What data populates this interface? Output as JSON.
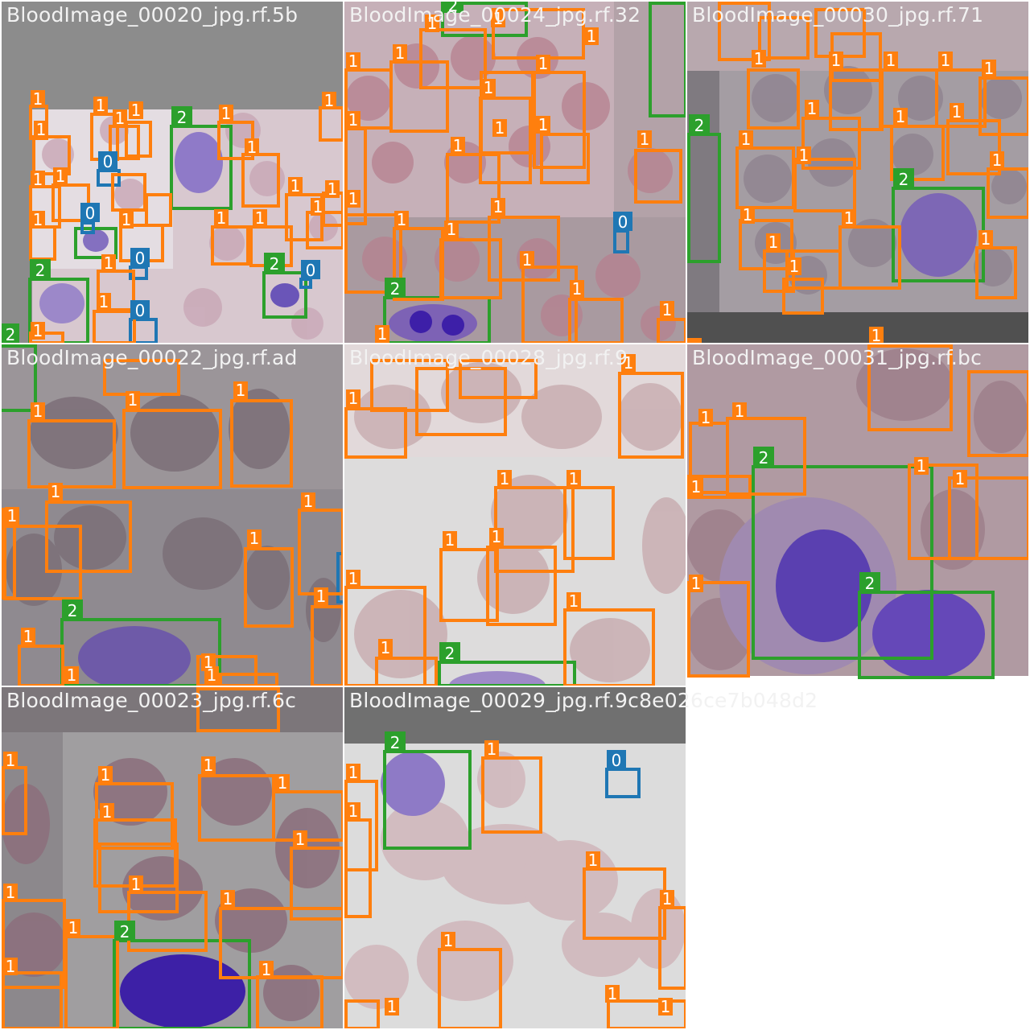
{
  "class_colors": {
    "0": "#1f77b4",
    "1": "#ff7f0e",
    "2": "#2ca02c"
  },
  "tiles": [
    {
      "title": "BloodImage_00020_jpg.rf.5b",
      "label_counts": {
        "0": 5,
        "1": 36,
        "2": 4
      }
    },
    {
      "title": "BloodImage_00024_jpg.rf.32",
      "label_counts": {
        "0": 1,
        "1": 28,
        "2": 3
      }
    },
    {
      "title": "BloodImage_00030_jpg.rf.71",
      "label_counts": {
        "1": 22,
        "2": 2
      }
    },
    {
      "title": "BloodImage_00022_jpg.rf.ad",
      "label_counts": {
        "1": 16,
        "2": 1
      }
    },
    {
      "title": "BloodImage_00028_jpg.rf.9",
      "label_counts": {
        "1": 11,
        "2": 1
      }
    },
    {
      "title": "BloodImage_00031_jpg.rf.bc",
      "label_counts": {
        "1": 9,
        "2": 2
      }
    },
    {
      "title": "BloodImage_00023_jpg.rf.6c",
      "label_counts": {
        "1": 14,
        "2": 1
      }
    },
    {
      "title": "BloodImage_00029_jpg.rf.9c8e026ce7b048d2",
      "label_counts": {
        "0": 1,
        "1": 10,
        "2": 1
      }
    }
  ]
}
